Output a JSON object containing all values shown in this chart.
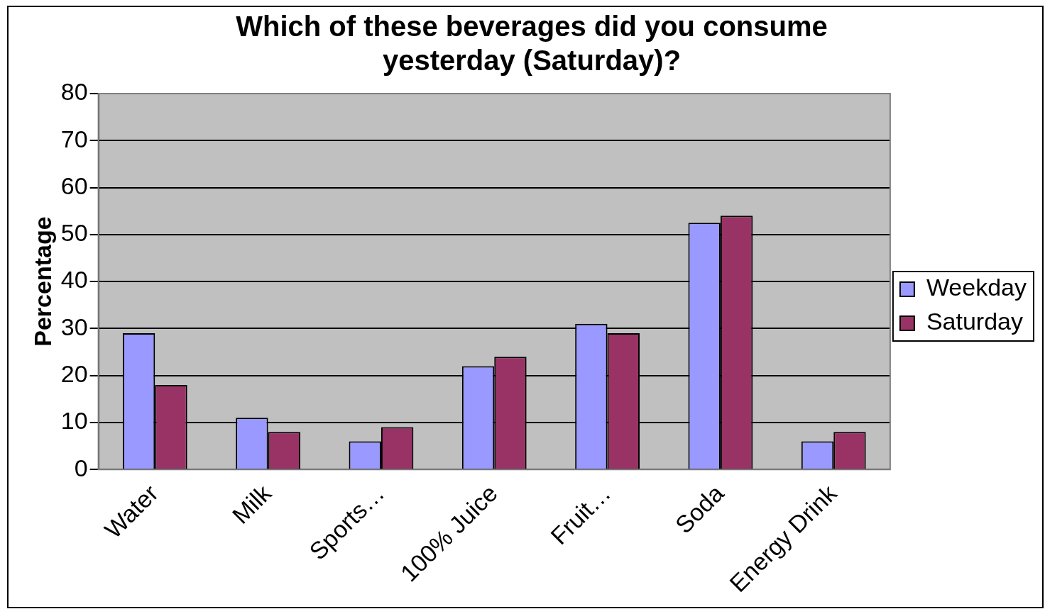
{
  "chart_data": {
    "type": "bar",
    "title": "Which of these beverages did you consume yesterday (Saturday)?",
    "ylabel": "Percentage",
    "categories": [
      "Water",
      "Milk",
      "Sports…",
      "100% Juice",
      "Fruit…",
      "Soda",
      "Energy Drink"
    ],
    "series": [
      {
        "name": "Weekday",
        "color": "#9999ff",
        "values": [
          29,
          11,
          6,
          22,
          31,
          52.5,
          6
        ]
      },
      {
        "name": "Saturday",
        "color": "#993366",
        "values": [
          18,
          8,
          9,
          24,
          29,
          54,
          8
        ]
      }
    ],
    "ylim": [
      0,
      80
    ],
    "yticks": [
      0,
      10,
      20,
      30,
      40,
      50,
      60,
      70,
      80
    ],
    "grid": "y",
    "legend": "right"
  }
}
